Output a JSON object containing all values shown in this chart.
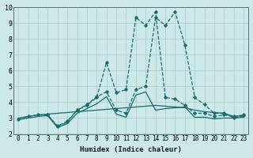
{
  "xlabel": "Humidex (Indice chaleur)",
  "bg_color": "#cce8e8",
  "grid_color": "#aacaca",
  "line_color": "#1a6b6b",
  "xlim": [
    -0.5,
    23.5
  ],
  "ylim": [
    2,
    10
  ],
  "xticks": [
    0,
    1,
    2,
    3,
    4,
    5,
    6,
    7,
    8,
    9,
    10,
    11,
    12,
    13,
    14,
    15,
    16,
    17,
    18,
    19,
    20,
    21,
    22,
    23
  ],
  "yticks": [
    2,
    3,
    4,
    5,
    6,
    7,
    8,
    9,
    10
  ],
  "lines": [
    {
      "x": [
        0,
        1,
        2,
        3,
        4,
        5,
        6,
        7,
        8,
        9,
        10,
        11,
        12,
        13,
        14,
        15,
        16,
        17,
        18,
        19,
        20,
        21,
        22,
        23
      ],
      "y": [
        2.9,
        3.1,
        3.2,
        3.2,
        2.5,
        2.8,
        3.5,
        3.8,
        4.3,
        6.5,
        4.6,
        4.8,
        9.35,
        8.85,
        9.7,
        4.3,
        4.2,
        3.8,
        3.3,
        3.3,
        3.1,
        3.2,
        3.1,
        3.2
      ],
      "marker": true
    },
    {
      "x": [
        0,
        1,
        2,
        3,
        4,
        5,
        6,
        7,
        8,
        9,
        10,
        11,
        12,
        13,
        14,
        15,
        16,
        17,
        18,
        19,
        20,
        21,
        22,
        23
      ],
      "y": [
        3.0,
        3.1,
        3.2,
        3.25,
        3.3,
        3.35,
        3.4,
        3.45,
        3.5,
        3.55,
        3.6,
        3.65,
        3.7,
        3.75,
        3.8,
        3.75,
        3.7,
        3.65,
        3.5,
        3.4,
        3.35,
        3.3,
        3.1,
        3.15
      ],
      "marker": false
    },
    {
      "x": [
        3,
        4,
        5,
        6,
        7,
        8,
        9,
        10,
        11,
        12,
        13,
        14,
        15,
        16,
        17,
        18,
        19,
        20,
        21,
        22,
        23
      ],
      "y": [
        3.2,
        2.45,
        2.75,
        3.5,
        3.85,
        4.35,
        4.65,
        3.5,
        3.3,
        4.8,
        5.0,
        9.35,
        8.85,
        9.7,
        7.6,
        4.3,
        3.85,
        3.3,
        3.3,
        3.0,
        3.15
      ],
      "marker": true
    },
    {
      "x": [
        0,
        1,
        2,
        3,
        4,
        5,
        6,
        7,
        8,
        9,
        10,
        11,
        12,
        13,
        14,
        15,
        16,
        17,
        18,
        19,
        20,
        21,
        22,
        23
      ],
      "y": [
        2.9,
        3.0,
        3.1,
        3.15,
        2.4,
        2.65,
        3.3,
        3.6,
        3.9,
        4.35,
        3.25,
        3.05,
        4.45,
        4.65,
        3.5,
        3.6,
        3.65,
        3.7,
        3.05,
        3.05,
        2.95,
        3.0,
        3.0,
        3.05
      ],
      "marker": false
    }
  ]
}
